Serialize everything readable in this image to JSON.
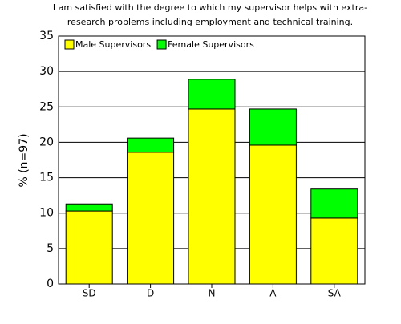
{
  "chart_data": {
    "type": "stacked-bar",
    "title": [
      "I am satisfied with the degree to which my supervisor helps with extra-",
      "research problems including employment and technical training."
    ],
    "y_label": "% (n=97)",
    "categories": [
      "SD",
      "D",
      "N",
      "A",
      "SA"
    ],
    "series": [
      {
        "name": "Male Supervisors",
        "color": "#ffff00",
        "values": [
          10.3,
          18.6,
          24.7,
          19.6,
          9.3
        ]
      },
      {
        "name": "Female Supervisors",
        "color": "#00ff00",
        "values": [
          1.0,
          2.0,
          4.2,
          5.1,
          4.1
        ]
      }
    ],
    "ylim": [
      0,
      35
    ],
    "yticks": [
      0,
      5,
      10,
      15,
      20,
      25,
      30,
      35
    ],
    "grid": true,
    "legend": "top-left"
  }
}
